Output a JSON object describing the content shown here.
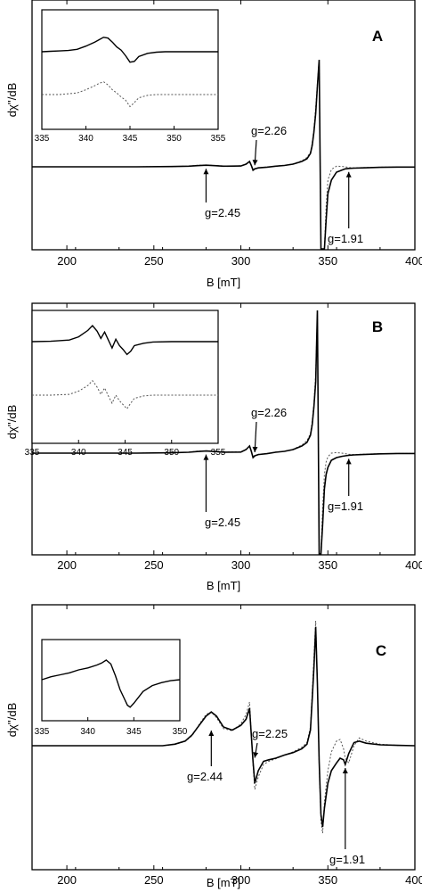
{
  "figure": {
    "background": "#ffffff",
    "line_color": "#000000",
    "dotted_color": "#555555"
  },
  "chart_data": [
    {
      "type": "line",
      "panel": "A",
      "xlabel": "B [mT]",
      "ylabel": "dχ''/dB",
      "xlim": [
        180,
        400
      ],
      "xticks": [
        200,
        250,
        300,
        350,
        400
      ],
      "series": [
        {
          "style": "solid",
          "x": [
            180,
            200,
            220,
            240,
            260,
            270,
            275,
            280,
            285,
            290,
            300,
            303,
            305,
            306,
            307,
            308,
            310,
            315,
            320,
            325,
            330,
            335,
            338,
            340,
            341,
            342,
            343,
            344,
            345,
            346,
            347,
            348,
            349,
            350,
            352,
            355,
            358,
            360,
            362,
            365,
            370,
            380,
            390,
            400
          ],
          "y": [
            0,
            0,
            0,
            0,
            0.2,
            0.5,
            0.9,
            1.2,
            0.9,
            0.5,
            0.6,
            2.0,
            4.0,
            1.0,
            -2.5,
            -1.5,
            -0.8,
            -0.3,
            0.5,
            1.0,
            2.0,
            4.0,
            6.0,
            10.0,
            16.0,
            26.0,
            40.0,
            60.0,
            80.0,
            -80.0,
            -80.0,
            -75.0,
            -40.0,
            -20.0,
            -10.0,
            -4.0,
            -2.5,
            -1.5,
            -1.2,
            -1.0,
            -0.8,
            -0.4,
            -0.2,
            -0.2
          ]
        },
        {
          "style": "dotted",
          "x": [
            180,
            200,
            220,
            240,
            260,
            270,
            275,
            280,
            285,
            290,
            300,
            303,
            305,
            306,
            307,
            308,
            310,
            315,
            320,
            325,
            330,
            335,
            338,
            340,
            341,
            342,
            343,
            344,
            345,
            346,
            347,
            348,
            349,
            350,
            352,
            355,
            358,
            360,
            362,
            365,
            370,
            380,
            390,
            400
          ],
          "y": [
            0,
            0,
            0,
            0,
            0.2,
            0.5,
            1.1,
            1.3,
            1.0,
            0.6,
            0.7,
            2.2,
            3.8,
            1.2,
            -2.0,
            -1.3,
            -0.7,
            -0.2,
            0.6,
            1.1,
            2.2,
            4.5,
            7.0,
            11.0,
            18.0,
            28.0,
            44.0,
            62.0,
            80.0,
            -80.0,
            -80.0,
            -68.0,
            -30.0,
            -10.0,
            -2.0,
            0.5,
            0.3,
            0.0,
            -0.5,
            -0.8,
            -0.6,
            -0.3,
            -0.2,
            -0.2
          ]
        }
      ],
      "annotations": [
        {
          "text": "g=2.26",
          "target_x": 308,
          "target_y": -1.5
        },
        {
          "text": "g=2.45",
          "target_x": 280,
          "target_y": 1.2
        },
        {
          "text": "g=1.91",
          "target_x": 362,
          "target_y": -1.2
        }
      ],
      "inset": {
        "xlim": [
          335,
          355
        ],
        "xticks": [
          335,
          340,
          345,
          350,
          355
        ],
        "series": [
          {
            "style": "solid",
            "x": [
              335,
              336,
              337,
              338,
              339,
              340,
              341,
              341.5,
              342,
              342.5,
              343,
              343.5,
              344,
              344.5,
              345,
              345.5,
              346,
              347,
              348,
              349,
              350,
              352,
              355
            ],
            "y": [
              0,
              0.05,
              0.1,
              0.15,
              0.3,
              0.7,
              1.2,
              1.5,
              1.8,
              1.7,
              1.2,
              0.6,
              0.2,
              -0.5,
              -1.3,
              -1.2,
              -0.6,
              -0.2,
              -0.05,
              0,
              0,
              0,
              0
            ]
          },
          {
            "style": "dotted",
            "x": [
              335,
              336,
              337,
              338,
              339,
              340,
              341,
              341.5,
              342,
              342.5,
              343,
              343.5,
              344,
              344.5,
              345,
              345.5,
              346,
              347,
              348,
              349,
              350,
              352,
              355
            ],
            "y": [
              0,
              0,
              0,
              0.1,
              0.2,
              0.6,
              1.1,
              1.4,
              1.6,
              1.2,
              0.6,
              0.2,
              -0.3,
              -0.7,
              -1.5,
              -1.0,
              -0.4,
              -0.1,
              0,
              0,
              0,
              0,
              0
            ]
          }
        ]
      }
    },
    {
      "type": "line",
      "panel": "B",
      "xlabel": "B [mT]",
      "ylabel": "dχ''/dB",
      "xlim": [
        180,
        400
      ],
      "xticks": [
        200,
        250,
        300,
        350,
        400
      ],
      "series": [
        {
          "style": "solid",
          "x": [
            180,
            200,
            220,
            240,
            260,
            270,
            275,
            280,
            285,
            290,
            300,
            303,
            305,
            306,
            307,
            308,
            310,
            315,
            320,
            325,
            330,
            335,
            338,
            340,
            341,
            342,
            343,
            344,
            345,
            346,
            347,
            348,
            349,
            350,
            352,
            355,
            358,
            360,
            362,
            365,
            370,
            380,
            390,
            400
          ],
          "y": [
            0,
            0,
            0,
            0,
            0.2,
            0.5,
            0.9,
            1.2,
            0.9,
            0.5,
            0.6,
            2.0,
            4.0,
            1.0,
            -2.5,
            -1.5,
            -0.8,
            -0.3,
            0.5,
            1.0,
            2.0,
            4.0,
            6.0,
            10.0,
            16.0,
            26.0,
            40.0,
            80.0,
            -80.0,
            -70.0,
            -40.0,
            -20.0,
            -12.0,
            -8.0,
            -4.0,
            -2.5,
            -1.8,
            -1.5,
            -1.2,
            -1.0,
            -0.8,
            -0.4,
            -0.2,
            -0.2
          ]
        },
        {
          "style": "dotted",
          "x": [
            180,
            200,
            220,
            240,
            260,
            270,
            275,
            280,
            285,
            290,
            300,
            303,
            305,
            306,
            307,
            308,
            310,
            315,
            320,
            325,
            330,
            335,
            338,
            340,
            341,
            342,
            343,
            344,
            345,
            346,
            347,
            348,
            349,
            350,
            352,
            355,
            358,
            360,
            362,
            365,
            370,
            380,
            390,
            400
          ],
          "y": [
            0,
            0,
            0,
            0,
            0.2,
            0.5,
            1.1,
            1.3,
            1.0,
            0.6,
            0.7,
            2.2,
            3.8,
            1.2,
            -2.0,
            -1.3,
            -0.7,
            -0.2,
            0.6,
            1.1,
            2.2,
            4.5,
            7.0,
            11.0,
            18.0,
            28.0,
            44.0,
            80.0,
            -80.0,
            -60.0,
            -30.0,
            -12.0,
            -5.0,
            -2.0,
            0.0,
            0.3,
            0.0,
            -0.3,
            -0.6,
            -0.8,
            -0.6,
            -0.3,
            -0.2,
            -0.2
          ]
        }
      ],
      "annotations": [
        {
          "text": "g=2.26",
          "target_x": 308,
          "target_y": -1.5
        },
        {
          "text": "g=2.45",
          "target_x": 280,
          "target_y": 1.2
        },
        {
          "text": "g=1.91",
          "target_x": 362,
          "target_y": -1.2
        }
      ],
      "inset": {
        "xlim": [
          335,
          355
        ],
        "xticks": [
          335,
          340,
          345,
          350,
          355
        ],
        "series": [
          {
            "style": "solid",
            "x": [
              335,
              337,
              339,
              340,
              341,
              341.5,
              342,
              342.4,
              342.8,
              343.2,
              343.6,
              344,
              344.4,
              344.8,
              345.2,
              345.6,
              346,
              347,
              348,
              350,
              352,
              355
            ],
            "y": [
              0,
              0.05,
              0.2,
              0.6,
              1.4,
              2.0,
              1.3,
              0.4,
              1.2,
              0.2,
              -0.8,
              0.3,
              -0.5,
              -1.0,
              -1.6,
              -1.2,
              -0.5,
              -0.2,
              -0.05,
              0,
              0,
              0
            ]
          },
          {
            "style": "dotted",
            "x": [
              335,
              337,
              339,
              340,
              341,
              341.5,
              342,
              342.4,
              342.8,
              343.2,
              343.6,
              344,
              344.4,
              344.8,
              345.2,
              345.6,
              346,
              347,
              348,
              350,
              352,
              355
            ],
            "y": [
              0,
              0,
              0.1,
              0.5,
              1.2,
              1.8,
              1.0,
              0.1,
              0.9,
              -0.1,
              -1.0,
              0.0,
              -0.7,
              -1.2,
              -1.7,
              -1.0,
              -0.4,
              -0.1,
              0,
              0,
              0,
              0
            ]
          }
        ]
      }
    },
    {
      "type": "line",
      "panel": "C",
      "xlabel": "B [mT]",
      "ylabel": "dχ''/dB",
      "xlim": [
        180,
        400
      ],
      "xticks": [
        200,
        250,
        300,
        350,
        400
      ],
      "series": [
        {
          "style": "solid",
          "x": [
            180,
            200,
            220,
            240,
            255,
            262,
            268,
            272,
            276,
            280,
            283,
            286,
            290,
            295,
            300,
            303,
            305,
            307,
            308,
            310,
            313,
            316,
            320,
            325,
            330,
            335,
            338,
            340,
            341,
            342,
            343,
            344,
            345,
            346,
            347,
            348,
            350,
            352,
            355,
            357,
            359,
            360,
            362,
            365,
            368,
            372,
            380,
            390,
            400
          ],
          "y": [
            0,
            0,
            0,
            0,
            0,
            0.5,
            1.5,
            3.5,
            6.5,
            9.5,
            10.8,
            9.5,
            6.0,
            5.0,
            6.5,
            8.5,
            12.0,
            -5.0,
            -12.0,
            -8.0,
            -5.0,
            -4.5,
            -4.0,
            -3.0,
            -2.2,
            -1.0,
            0.5,
            5.0,
            15.0,
            25.0,
            38.0,
            20.0,
            -5.0,
            -22.0,
            -26.0,
            -20.0,
            -12.0,
            -8.0,
            -5.5,
            -4.0,
            -4.5,
            -6.0,
            -2.5,
            1.0,
            1.5,
            0.8,
            0.3,
            0.1,
            0
          ]
        },
        {
          "style": "dotted",
          "x": [
            180,
            200,
            220,
            240,
            255,
            262,
            268,
            272,
            276,
            280,
            283,
            286,
            290,
            295,
            300,
            303,
            305,
            307,
            308,
            310,
            313,
            316,
            320,
            325,
            330,
            335,
            338,
            340,
            341,
            342,
            343,
            344,
            345,
            346,
            347,
            348,
            350,
            352,
            355,
            357,
            359,
            360,
            362,
            365,
            368,
            372,
            380,
            390,
            400
          ],
          "y": [
            0,
            0,
            0,
            0,
            0,
            0.4,
            1.4,
            3.2,
            6.8,
            10.0,
            10.8,
            9.0,
            5.5,
            4.8,
            7.0,
            10.0,
            14.0,
            -6.0,
            -14.0,
            -10.0,
            -6.0,
            -5.0,
            -4.2,
            -3.0,
            -2.0,
            -0.5,
            1.0,
            6.0,
            17.0,
            28.0,
            40.0,
            20.0,
            -6.0,
            -24.0,
            -28.0,
            -18.0,
            -8.0,
            -2.0,
            1.5,
            2.0,
            -1.0,
            -4.0,
            -5.5,
            0.0,
            2.5,
            1.5,
            0.5,
            0.1,
            0
          ]
        }
      ],
      "annotations": [
        {
          "text": "g=2.25",
          "target_x": 308,
          "target_y": -5.0
        },
        {
          "text": "g=2.44",
          "target_x": 283,
          "target_y": 6.0
        },
        {
          "text": "g=1.91",
          "target_x": 360,
          "target_y": -6.0
        }
      ],
      "inset": {
        "xlim": [
          335,
          350
        ],
        "xticks": [
          335,
          340,
          345,
          350
        ],
        "series": [
          {
            "style": "solid",
            "x": [
              335,
              336,
              337,
              338,
              339,
              340,
              341,
              341.5,
              342,
              342.5,
              343,
              343.5,
              344,
              344.3,
              344.6,
              345,
              345.5,
              346,
              347,
              348,
              349,
              350
            ],
            "y": [
              0,
              0.15,
              0.25,
              0.35,
              0.5,
              0.6,
              0.75,
              0.85,
              1.0,
              0.8,
              0.2,
              -0.5,
              -1.0,
              -1.3,
              -1.4,
              -1.2,
              -0.9,
              -0.6,
              -0.3,
              -0.15,
              -0.05,
              0.0
            ]
          }
        ]
      }
    }
  ]
}
